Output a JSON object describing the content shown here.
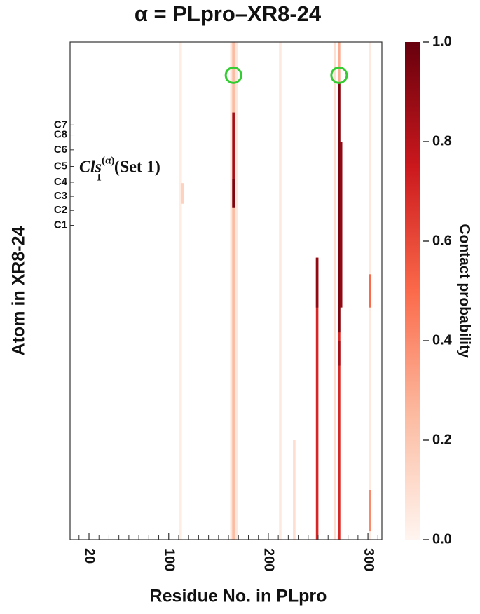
{
  "chart_data": {
    "type": "heatmap",
    "title": "α = PLpro–XR8-24",
    "x_label": "Residue No. in PLpro",
    "y_label": "Atom in XR8-24",
    "xlim": [
      1,
      314
    ],
    "xticks": [
      20,
      100,
      200,
      300
    ],
    "xminorticks": [
      10,
      30,
      40,
      50,
      60,
      70,
      80,
      90,
      110,
      120,
      130,
      140,
      150,
      160,
      170,
      180,
      190,
      210,
      220,
      230,
      240,
      250,
      260,
      270,
      280,
      290,
      310
    ],
    "ylim": [
      0,
      60
    ],
    "yticks": [
      {
        "value": 10,
        "label": "C7"
      },
      {
        "value": 11.2,
        "label": "C8"
      },
      {
        "value": 13,
        "label": "C6"
      },
      {
        "value": 15,
        "label": "C5"
      },
      {
        "value": 16.9,
        "label": "C4"
      },
      {
        "value": 18.6,
        "label": "C3"
      },
      {
        "value": 20.3,
        "label": "C2"
      },
      {
        "value": 22.1,
        "label": "C1"
      }
    ],
    "colorbar": {
      "label": "Contact probability",
      "clim": [
        0,
        1
      ],
      "ticks": [
        {
          "value": 0,
          "label": "0.0"
        },
        0.2,
        0.4,
        0.6,
        0.8,
        {
          "value": 1,
          "label": "1.0"
        }
      ],
      "colormap": [
        "#fff5f0",
        "#fcbba1",
        "#fb6a4a",
        "#cb181d",
        "#67000d"
      ]
    },
    "cells": [
      {
        "x": 112,
        "y0": 0,
        "y1": 60,
        "value": 0.04
      },
      {
        "x": 114,
        "y0": 17,
        "y1": 19.5,
        "value": 0.15
      },
      {
        "x": 163,
        "y0": 0,
        "y1": 60,
        "value": 0.08
      },
      {
        "x": 168,
        "y0": 0,
        "y1": 60,
        "value": 0.06
      },
      {
        "x": 165,
        "y0": 0,
        "y1": 60,
        "value": 0.25
      },
      {
        "x": 165,
        "y0": 8.5,
        "y1": 20,
        "value": 0.85
      },
      {
        "x": 165,
        "y0": 16.5,
        "y1": 20,
        "value": 0.95
      },
      {
        "x": 212,
        "y0": 0,
        "y1": 60,
        "value": 0.05
      },
      {
        "x": 226,
        "y0": 48,
        "y1": 60,
        "value": 0.1
      },
      {
        "x": 249,
        "y0": 26,
        "y1": 60,
        "value": 0.7
      },
      {
        "x": 249,
        "y0": 26,
        "y1": 32,
        "value": 0.9
      },
      {
        "x": 267,
        "y0": 0,
        "y1": 60,
        "value": 0.1
      },
      {
        "x": 271,
        "y0": 0,
        "y1": 60,
        "value": 0.3
      },
      {
        "x": 271,
        "y0": 5,
        "y1": 60,
        "value": 0.7
      },
      {
        "x": 271,
        "y0": 5,
        "y1": 35,
        "value": 0.95
      },
      {
        "x": 273,
        "y0": 12,
        "y1": 32,
        "value": 0.9
      },
      {
        "x": 271,
        "y0": 36,
        "y1": 39,
        "value": 0.85
      },
      {
        "x": 302,
        "y0": 0,
        "y1": 60,
        "value": 0.05
      },
      {
        "x": 302,
        "y0": 28,
        "y1": 32,
        "value": 0.5
      },
      {
        "x": 302,
        "y0": 54,
        "y1": 59,
        "value": 0.4
      }
    ],
    "markers": {
      "color": "#33cc33",
      "points": [
        {
          "x": 165,
          "y": 4
        },
        {
          "x": 271,
          "y": 4
        }
      ]
    },
    "annotation": {
      "base": "Cls",
      "sup": "(α)",
      "sub": "1",
      "suffix": "(Set 1)",
      "x": 10,
      "y": 15
    }
  }
}
